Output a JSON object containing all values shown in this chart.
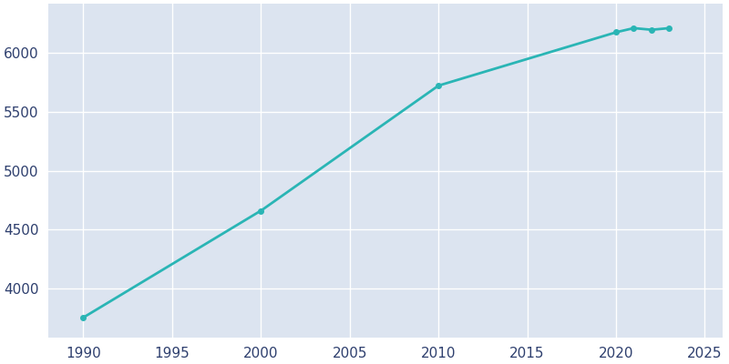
{
  "years": [
    1990,
    2000,
    2010,
    2020,
    2021,
    2022,
    2023
  ],
  "population": [
    3752,
    4660,
    5724,
    6178,
    6213,
    6199,
    6213
  ],
  "line_color": "#2ab5b5",
  "marker_color": "#2ab5b5",
  "marker_style": "o",
  "marker_size": 4,
  "line_width": 2.0,
  "background_color": "#ffffff",
  "plot_background": "#dce4f0",
  "xlim": [
    1988,
    2026
  ],
  "ylim": [
    3580,
    6420
  ],
  "xticks": [
    1990,
    1995,
    2000,
    2005,
    2010,
    2015,
    2020,
    2025
  ],
  "yticks": [
    4000,
    4500,
    5000,
    5500,
    6000
  ],
  "tick_color": "#2e3f6e",
  "tick_fontsize": 11,
  "grid_color": "#ffffff",
  "grid_linewidth": 1.0
}
